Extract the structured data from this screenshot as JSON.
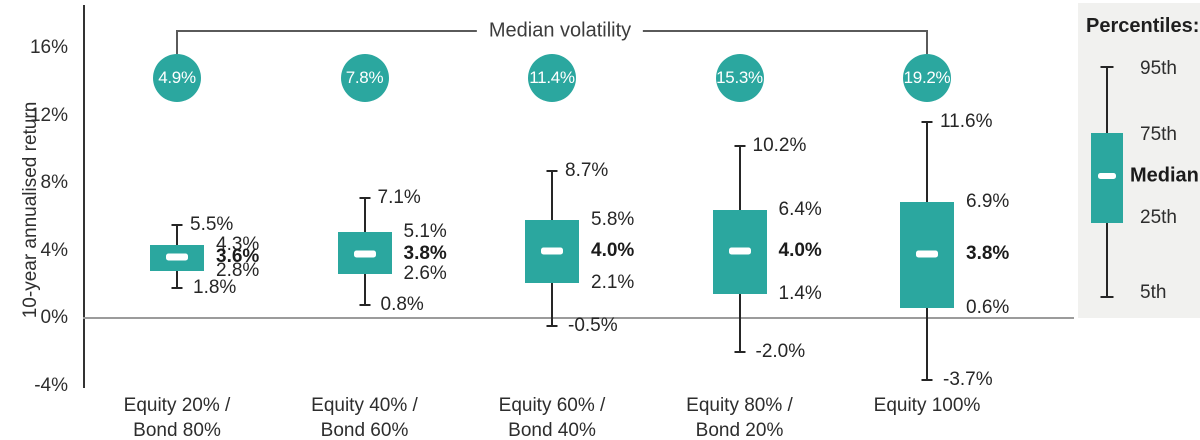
{
  "colors": {
    "teal": "#2BA79F",
    "axis": "#333333",
    "zero_line": "#9B9B9B",
    "bracket_line": "#5A5A5A",
    "legend_bg": "#F1F1EF",
    "text": "#2D2D2D"
  },
  "chart_data": {
    "type": "boxplot",
    "title": "Median volatility",
    "ylabel": "10-year annualised return",
    "ylim": [
      -4.9,
      18.5
    ],
    "grid": false,
    "legend_position": "right",
    "yticks": [
      {
        "value": 16,
        "label": "16%"
      },
      {
        "value": 12,
        "label": "12%"
      },
      {
        "value": 8,
        "label": "8%"
      },
      {
        "value": 4,
        "label": "4%"
      },
      {
        "value": 0,
        "label": "0%"
      },
      {
        "value": -4,
        "label": "-4%"
      }
    ],
    "series": [
      {
        "name": "Equity 20% / Bond 80%",
        "name_lines": "Equity 20% /\nBond 80%",
        "median_volatility": "4.9%",
        "p95": 5.5,
        "p75": 4.3,
        "median": 3.6,
        "p25": 2.8,
        "p5": 1.8,
        "labels": {
          "p95": "5.5%",
          "p75": "4.3%",
          "median": "3.6%",
          "p25": "2.8%",
          "p5": "1.8%"
        }
      },
      {
        "name": "Equity 40% / Bond 60%",
        "name_lines": "Equity 40% /\nBond 60%",
        "median_volatility": "7.8%",
        "p95": 7.1,
        "p75": 5.1,
        "median": 3.8,
        "p25": 2.6,
        "p5": 0.8,
        "labels": {
          "p95": "7.1%",
          "p75": "5.1%",
          "median": "3.8%",
          "p25": "2.6%",
          "p5": "0.8%"
        }
      },
      {
        "name": "Equity 60% / Bond 40%",
        "name_lines": "Equity 60% /\nBond 40%",
        "median_volatility": "11.4%",
        "p95": 8.7,
        "p75": 5.8,
        "median": 4.0,
        "p25": 2.1,
        "p5": -0.5,
        "labels": {
          "p95": "8.7%",
          "p75": "5.8%",
          "median": "4.0%",
          "p25": "2.1%",
          "p5": "-0.5%"
        }
      },
      {
        "name": "Equity 80% / Bond 20%",
        "name_lines": "Equity 80% /\nBond 20%",
        "median_volatility": "15.3%",
        "p95": 10.2,
        "p75": 6.4,
        "median": 4.0,
        "p25": 1.4,
        "p5": -2.0,
        "labels": {
          "p95": "10.2%",
          "p75": "6.4%",
          "median": "4.0%",
          "p25": "1.4%",
          "p5": "-2.0%"
        }
      },
      {
        "name": "Equity 100%",
        "name_lines": "Equity 100%",
        "median_volatility": "19.2%",
        "p95": 11.6,
        "p75": 6.9,
        "median": 3.8,
        "p25": 0.6,
        "p5": -3.7,
        "labels": {
          "p95": "11.6%",
          "p75": "6.9%",
          "median": "3.8%",
          "p25": "0.6%",
          "p5": "-3.7%"
        }
      }
    ]
  },
  "legend": {
    "title": "Percentiles:",
    "items": [
      {
        "label": "95th"
      },
      {
        "label": "75th"
      },
      {
        "label": "Median"
      },
      {
        "label": "25th"
      },
      {
        "label": "5th"
      }
    ]
  }
}
